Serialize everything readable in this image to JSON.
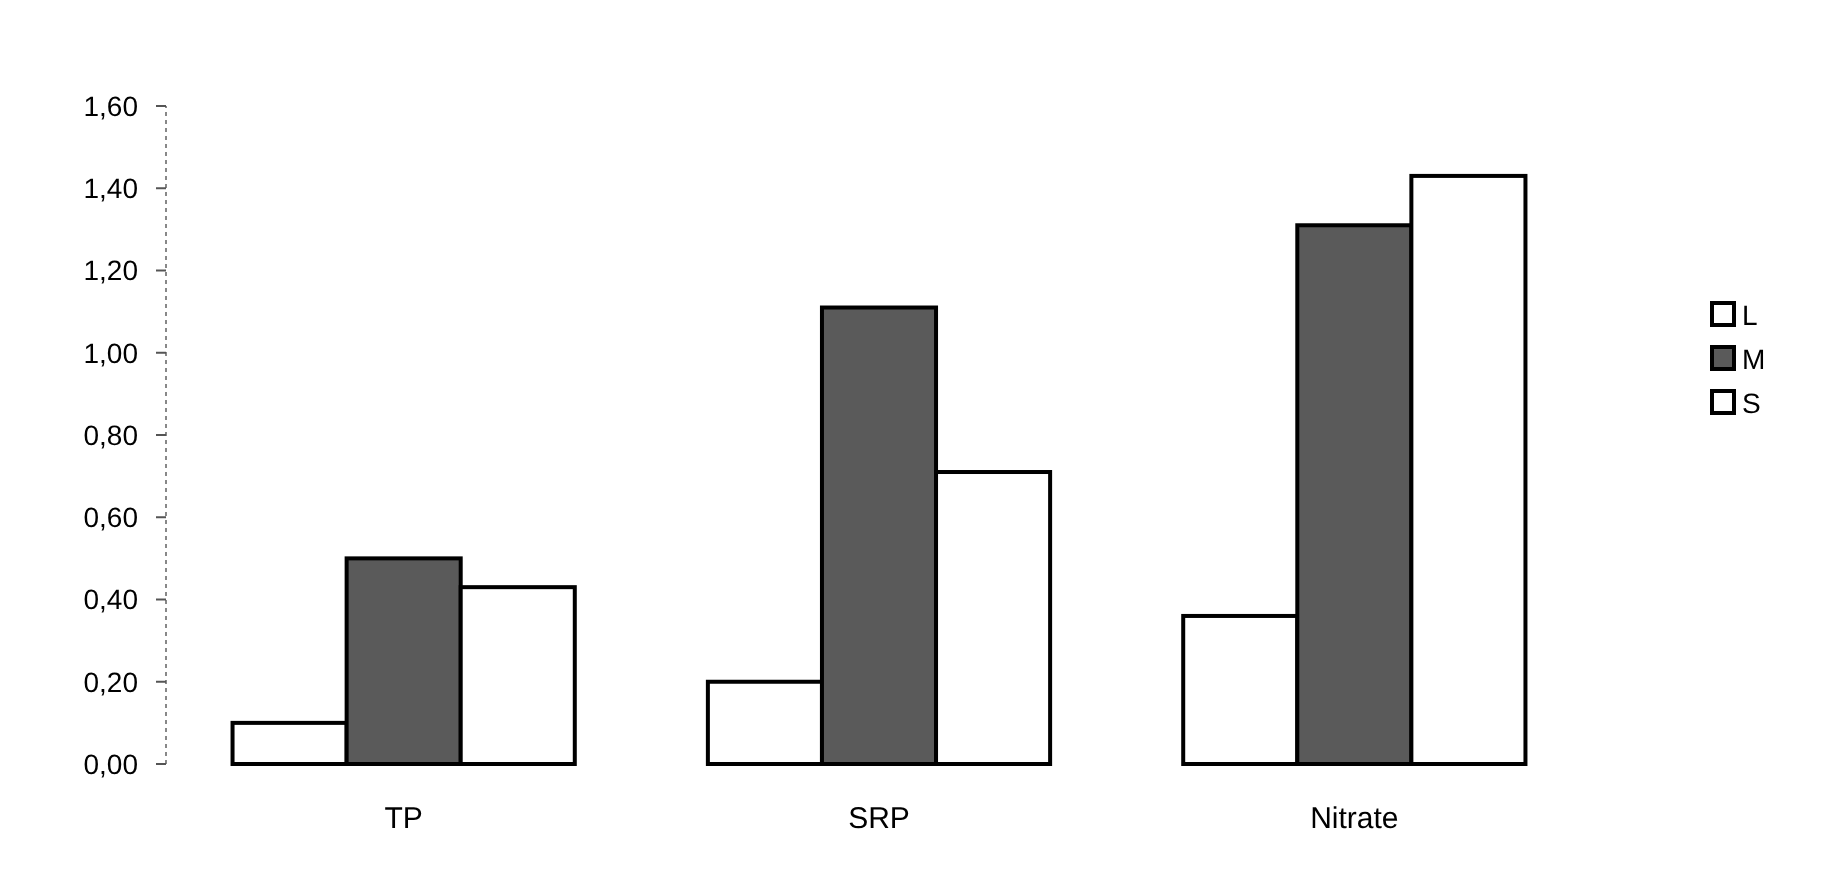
{
  "chart_data": {
    "type": "bar",
    "categories": [
      "TP",
      "SRP",
      "Nitrate"
    ],
    "series": [
      {
        "name": "L",
        "color": "#ffffff",
        "values": [
          0.1,
          0.2,
          0.36
        ]
      },
      {
        "name": "M",
        "color": "#5a5a5a",
        "values": [
          0.5,
          1.11,
          1.31
        ]
      },
      {
        "name": "S",
        "color": "#ffffff",
        "values": [
          0.43,
          0.71,
          1.43
        ]
      }
    ],
    "ylim": [
      0,
      1.6
    ],
    "yticks": [
      {
        "value": 0,
        "label": "0,00"
      },
      {
        "value": 0.2,
        "label": "0,20"
      },
      {
        "value": 0.4,
        "label": "0,40"
      },
      {
        "value": 0.6,
        "label": "0,60"
      },
      {
        "value": 0.8,
        "label": "0,80"
      },
      {
        "value": 1,
        "label": "1,00"
      },
      {
        "value": 1.2,
        "label": "1,20"
      },
      {
        "value": 1.4,
        "label": "1,40"
      },
      {
        "value": 1.6,
        "label": "1,60"
      }
    ],
    "legend": "right"
  }
}
